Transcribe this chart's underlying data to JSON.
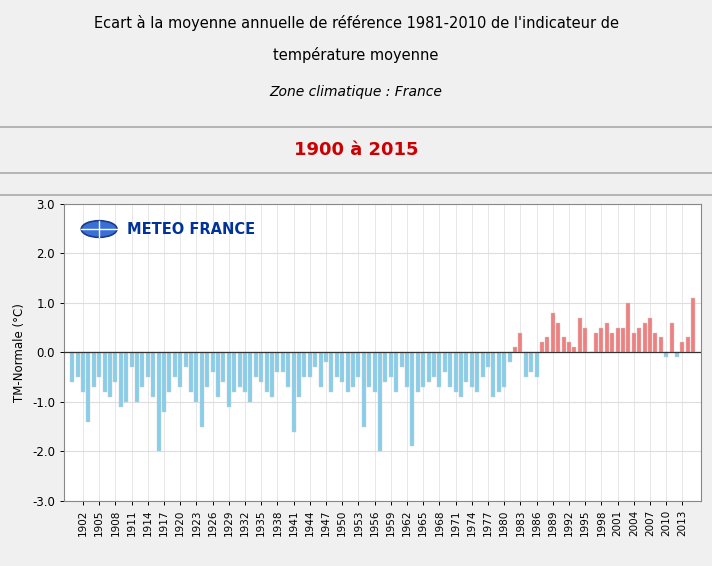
{
  "title_line1": "Ecart à la moyenne annuelle de référence 1981-2010 de l'indicateur de",
  "title_line2": "température moyenne",
  "subtitle": "Zone climatique : France",
  "period_label": "1900 à 2015",
  "ylabel": "TM-Normale (°C)",
  "ylim": [
    -3.0,
    3.0
  ],
  "yticks": [
    -3.0,
    -2.0,
    -1.0,
    0.0,
    1.0,
    2.0,
    3.0
  ],
  "bg_color": "#f0f0f0",
  "plot_bg_color": "#ffffff",
  "bar_color_pos": "#f08080",
  "bar_color_neg": "#87ceeb",
  "years": [
    1900,
    1901,
    1902,
    1903,
    1904,
    1905,
    1906,
    1907,
    1908,
    1909,
    1910,
    1911,
    1912,
    1913,
    1914,
    1915,
    1916,
    1917,
    1918,
    1919,
    1920,
    1921,
    1922,
    1923,
    1924,
    1925,
    1926,
    1927,
    1928,
    1929,
    1930,
    1931,
    1932,
    1933,
    1934,
    1935,
    1936,
    1937,
    1938,
    1939,
    1940,
    1941,
    1942,
    1943,
    1944,
    1945,
    1946,
    1947,
    1948,
    1949,
    1950,
    1951,
    1952,
    1953,
    1954,
    1955,
    1956,
    1957,
    1958,
    1959,
    1960,
    1961,
    1962,
    1963,
    1964,
    1965,
    1966,
    1967,
    1968,
    1969,
    1970,
    1971,
    1972,
    1973,
    1974,
    1975,
    1976,
    1977,
    1978,
    1979,
    1980,
    1981,
    1982,
    1983,
    1984,
    1985,
    1986,
    1987,
    1988,
    1989,
    1990,
    1991,
    1992,
    1993,
    1994,
    1995,
    1996,
    1997,
    1998,
    1999,
    2000,
    2001,
    2002,
    2003,
    2004,
    2005,
    2006,
    2007,
    2008,
    2009,
    2010,
    2011,
    2012,
    2013,
    2014,
    2015
  ],
  "values": [
    -0.6,
    -0.5,
    -0.8,
    -1.4,
    -0.7,
    -0.5,
    -0.8,
    -0.9,
    -0.6,
    -1.1,
    -1.0,
    -0.3,
    -1.0,
    -0.7,
    -0.5,
    -0.9,
    -2.0,
    -1.2,
    -0.8,
    -0.5,
    -0.7,
    -0.3,
    -0.8,
    -1.0,
    -1.5,
    -0.7,
    -0.4,
    -0.9,
    -0.6,
    -1.1,
    -0.8,
    -0.7,
    -0.8,
    -1.0,
    -0.5,
    -0.6,
    -0.8,
    -0.9,
    -0.4,
    -0.4,
    -0.7,
    -1.6,
    -0.9,
    -0.5,
    -0.5,
    -0.3,
    -0.7,
    -0.2,
    -0.8,
    -0.5,
    -0.6,
    -0.8,
    -0.7,
    -0.5,
    -1.5,
    -0.7,
    -0.8,
    -2.0,
    -0.6,
    -0.5,
    -0.8,
    -0.3,
    -0.7,
    -1.9,
    -0.8,
    -0.7,
    -0.6,
    -0.5,
    -0.7,
    -0.4,
    -0.7,
    -0.8,
    -0.9,
    -0.6,
    -0.7,
    -0.8,
    -0.5,
    -0.3,
    -0.9,
    -0.8,
    -0.7,
    -0.2,
    0.1,
    0.4,
    -0.5,
    -0.4,
    -0.5,
    0.2,
    0.3,
    0.8,
    0.6,
    0.3,
    0.2,
    0.1,
    0.7,
    0.5,
    0.0,
    0.4,
    0.5,
    0.6,
    0.4,
    0.5,
    0.5,
    1.0,
    0.4,
    0.5,
    0.6,
    0.7,
    0.4,
    0.3,
    -0.1,
    0.6,
    -0.1,
    0.2,
    0.3,
    1.1
  ],
  "header_bg": "#f0f0f0",
  "period_color": "#cc0000",
  "logo_text": "METEO FRANCE",
  "logo_color": "#003399",
  "title_color": "#000000",
  "grid_color": "#dddddd",
  "separator_color": "#aaaaaa"
}
